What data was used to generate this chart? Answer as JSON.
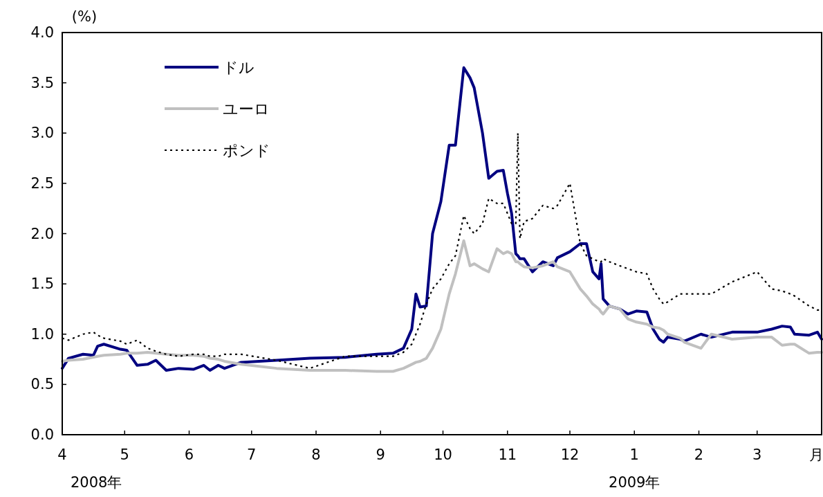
{
  "chart_data": {
    "type": "line",
    "ylabel": "(%)",
    "x": [
      "2008-04-01",
      "2008-04-04",
      "2008-04-11",
      "2008-04-16",
      "2008-04-18",
      "2008-04-21",
      "2008-04-29",
      "2008-05-02",
      "2008-05-07",
      "2008-05-12",
      "2008-05-16",
      "2008-05-21",
      "2008-05-27",
      "2008-06-03",
      "2008-06-08",
      "2008-06-11",
      "2008-06-15",
      "2008-06-18",
      "2008-06-26",
      "2008-07-13",
      "2008-07-29",
      "2008-08-15",
      "2008-08-30",
      "2008-09-07",
      "2008-09-12",
      "2008-09-16",
      "2008-09-18",
      "2008-09-20",
      "2008-09-23",
      "2008-09-26",
      "2008-09-30",
      "2008-10-04",
      "2008-10-07",
      "2008-10-11",
      "2008-10-14",
      "2008-10-16",
      "2008-10-20",
      "2008-10-23",
      "2008-10-27",
      "2008-10-30",
      "2008-11-01",
      "2008-11-03",
      "2008-11-05",
      "2008-11-06",
      "2008-11-07",
      "2008-11-09",
      "2008-11-13",
      "2008-11-18",
      "2008-11-23",
      "2008-11-25",
      "2008-12-01",
      "2008-12-06",
      "2008-12-09",
      "2008-12-12",
      "2008-12-15",
      "2008-12-16",
      "2008-12-17",
      "2008-12-20",
      "2008-12-25",
      "2008-12-29",
      "2009-01-02",
      "2009-01-07",
      "2009-01-10",
      "2009-01-13",
      "2009-01-15",
      "2009-01-17",
      "2009-01-23",
      "2009-01-25",
      "2009-02-02",
      "2009-02-07",
      "2009-02-17",
      "2009-03-01",
      "2009-03-08",
      "2009-03-13",
      "2009-03-17",
      "2009-03-19",
      "2009-03-26",
      "2009-03-30",
      "2009-04-01"
    ],
    "series": [
      {
        "name": "ドル",
        "color": "#000080",
        "line_style": "solid",
        "values": [
          0.66,
          0.76,
          0.8,
          0.79,
          0.88,
          0.9,
          0.85,
          0.84,
          0.69,
          0.7,
          0.74,
          0.64,
          0.66,
          0.65,
          0.69,
          0.64,
          0.69,
          0.66,
          0.72,
          0.74,
          0.76,
          0.77,
          0.8,
          0.81,
          0.86,
          1.05,
          1.4,
          1.27,
          1.28,
          2.0,
          2.32,
          2.88,
          2.88,
          3.65,
          3.55,
          3.45,
          3.0,
          2.55,
          2.62,
          2.63,
          2.4,
          2.2,
          1.8,
          1.78,
          1.75,
          1.75,
          1.62,
          1.72,
          1.68,
          1.76,
          1.82,
          1.9,
          1.9,
          1.62,
          1.55,
          1.7,
          1.35,
          1.28,
          1.25,
          1.2,
          1.23,
          1.22,
          1.05,
          0.95,
          0.92,
          0.97,
          0.95,
          0.93,
          1.0,
          0.97,
          1.02,
          1.02,
          1.05,
          1.08,
          1.07,
          1.0,
          0.99,
          1.02,
          0.95
        ]
      },
      {
        "name": "ユーロ",
        "color": "#c0c0c0",
        "line_style": "solid",
        "values": [
          0.73,
          0.74,
          0.75,
          0.77,
          0.78,
          0.79,
          0.8,
          0.81,
          0.81,
          0.82,
          0.81,
          0.8,
          0.79,
          0.79,
          0.78,
          0.76,
          0.75,
          0.73,
          0.7,
          0.66,
          0.64,
          0.64,
          0.63,
          0.63,
          0.66,
          0.7,
          0.72,
          0.73,
          0.76,
          0.86,
          1.05,
          1.4,
          1.6,
          1.93,
          1.68,
          1.7,
          1.65,
          1.62,
          1.85,
          1.8,
          1.82,
          1.8,
          1.72,
          1.72,
          1.7,
          1.67,
          1.66,
          1.68,
          1.72,
          1.67,
          1.62,
          1.45,
          1.38,
          1.3,
          1.25,
          1.22,
          1.2,
          1.28,
          1.25,
          1.15,
          1.12,
          1.1,
          1.07,
          1.06,
          1.04,
          1.0,
          0.96,
          0.92,
          0.86,
          1.0,
          0.95,
          0.97,
          0.97,
          0.89,
          0.9,
          0.9,
          0.81,
          0.82,
          0.82
        ]
      },
      {
        "name": "ポンド",
        "color": "#000000",
        "line_style": "dotted",
        "values": [
          0.96,
          0.94,
          1.0,
          1.02,
          0.99,
          0.96,
          0.93,
          0.9,
          0.94,
          0.86,
          0.83,
          0.8,
          0.78,
          0.8,
          0.8,
          0.78,
          0.78,
          0.8,
          0.8,
          0.74,
          0.66,
          0.78,
          0.78,
          0.78,
          0.82,
          0.9,
          1.0,
          1.1,
          1.3,
          1.45,
          1.55,
          1.7,
          1.78,
          2.18,
          2.05,
          2.0,
          2.1,
          2.35,
          2.3,
          2.3,
          2.2,
          2.1,
          2.1,
          3.0,
          1.95,
          2.12,
          2.15,
          2.28,
          2.25,
          2.28,
          2.5,
          1.9,
          1.78,
          1.75,
          1.72,
          1.72,
          1.75,
          1.72,
          1.68,
          1.65,
          1.62,
          1.6,
          1.45,
          1.35,
          1.3,
          1.32,
          1.4,
          1.4,
          1.4,
          1.4,
          1.52,
          1.62,
          1.45,
          1.43,
          1.4,
          1.38,
          1.28,
          1.24,
          1.24
        ]
      }
    ],
    "xlim": [
      "2008-04-01",
      "2009-04-01"
    ],
    "xticks": [
      {
        "value": "2008-04-01",
        "label": "4"
      },
      {
        "value": "2008-05-01",
        "label": "5"
      },
      {
        "value": "2008-06-01",
        "label": "6"
      },
      {
        "value": "2008-07-01",
        "label": "7"
      },
      {
        "value": "2008-08-01",
        "label": "8"
      },
      {
        "value": "2008-09-01",
        "label": "9"
      },
      {
        "value": "2008-10-01",
        "label": "10"
      },
      {
        "value": "2008-11-01",
        "label": "11"
      },
      {
        "value": "2008-12-01",
        "label": "12"
      },
      {
        "value": "2009-01-01",
        "label": "1"
      },
      {
        "value": "2009-02-01",
        "label": "2"
      },
      {
        "value": "2009-03-01",
        "label": "3"
      }
    ],
    "ylim": [
      0,
      4
    ],
    "yticks": [
      {
        "value": 0,
        "label": "0.0"
      },
      {
        "value": 0.5,
        "label": "0.5"
      },
      {
        "value": 1,
        "label": "1.0"
      },
      {
        "value": 1.5,
        "label": "1.5"
      },
      {
        "value": 2,
        "label": "2.0"
      },
      {
        "value": 2.5,
        "label": "2.5"
      },
      {
        "value": 3,
        "label": "3.0"
      },
      {
        "value": 3.5,
        "label": "3.5"
      },
      {
        "value": 4,
        "label": "4.0"
      }
    ],
    "legend": "top left",
    "grid": false,
    "marker": "none",
    "annotations": [
      "月",
      "2008年",
      "2009年"
    ]
  }
}
